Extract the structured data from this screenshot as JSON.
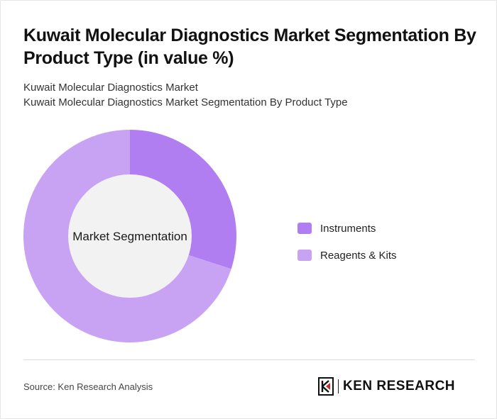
{
  "header": {
    "title": "Kuwait Molecular Diagnostics Market Segmentation By Product Type (in value %)",
    "subtitle_1": "Kuwait Molecular Diagnostics Market",
    "subtitle_2": "Kuwait Molecular Diagnostics Market Segmentation By Product Type"
  },
  "chart_data": {
    "type": "pie",
    "donut": true,
    "center_label": "Market Segmentation",
    "categories": [
      "Instruments",
      "Reagents & Kits"
    ],
    "values": [
      30,
      70
    ],
    "colors": [
      "#b07ef0",
      "#c9a3f3"
    ],
    "legend_position": "right"
  },
  "footer": {
    "source": "Source: Ken Research Analysis",
    "logo_text": "KEN RESEARCH"
  }
}
